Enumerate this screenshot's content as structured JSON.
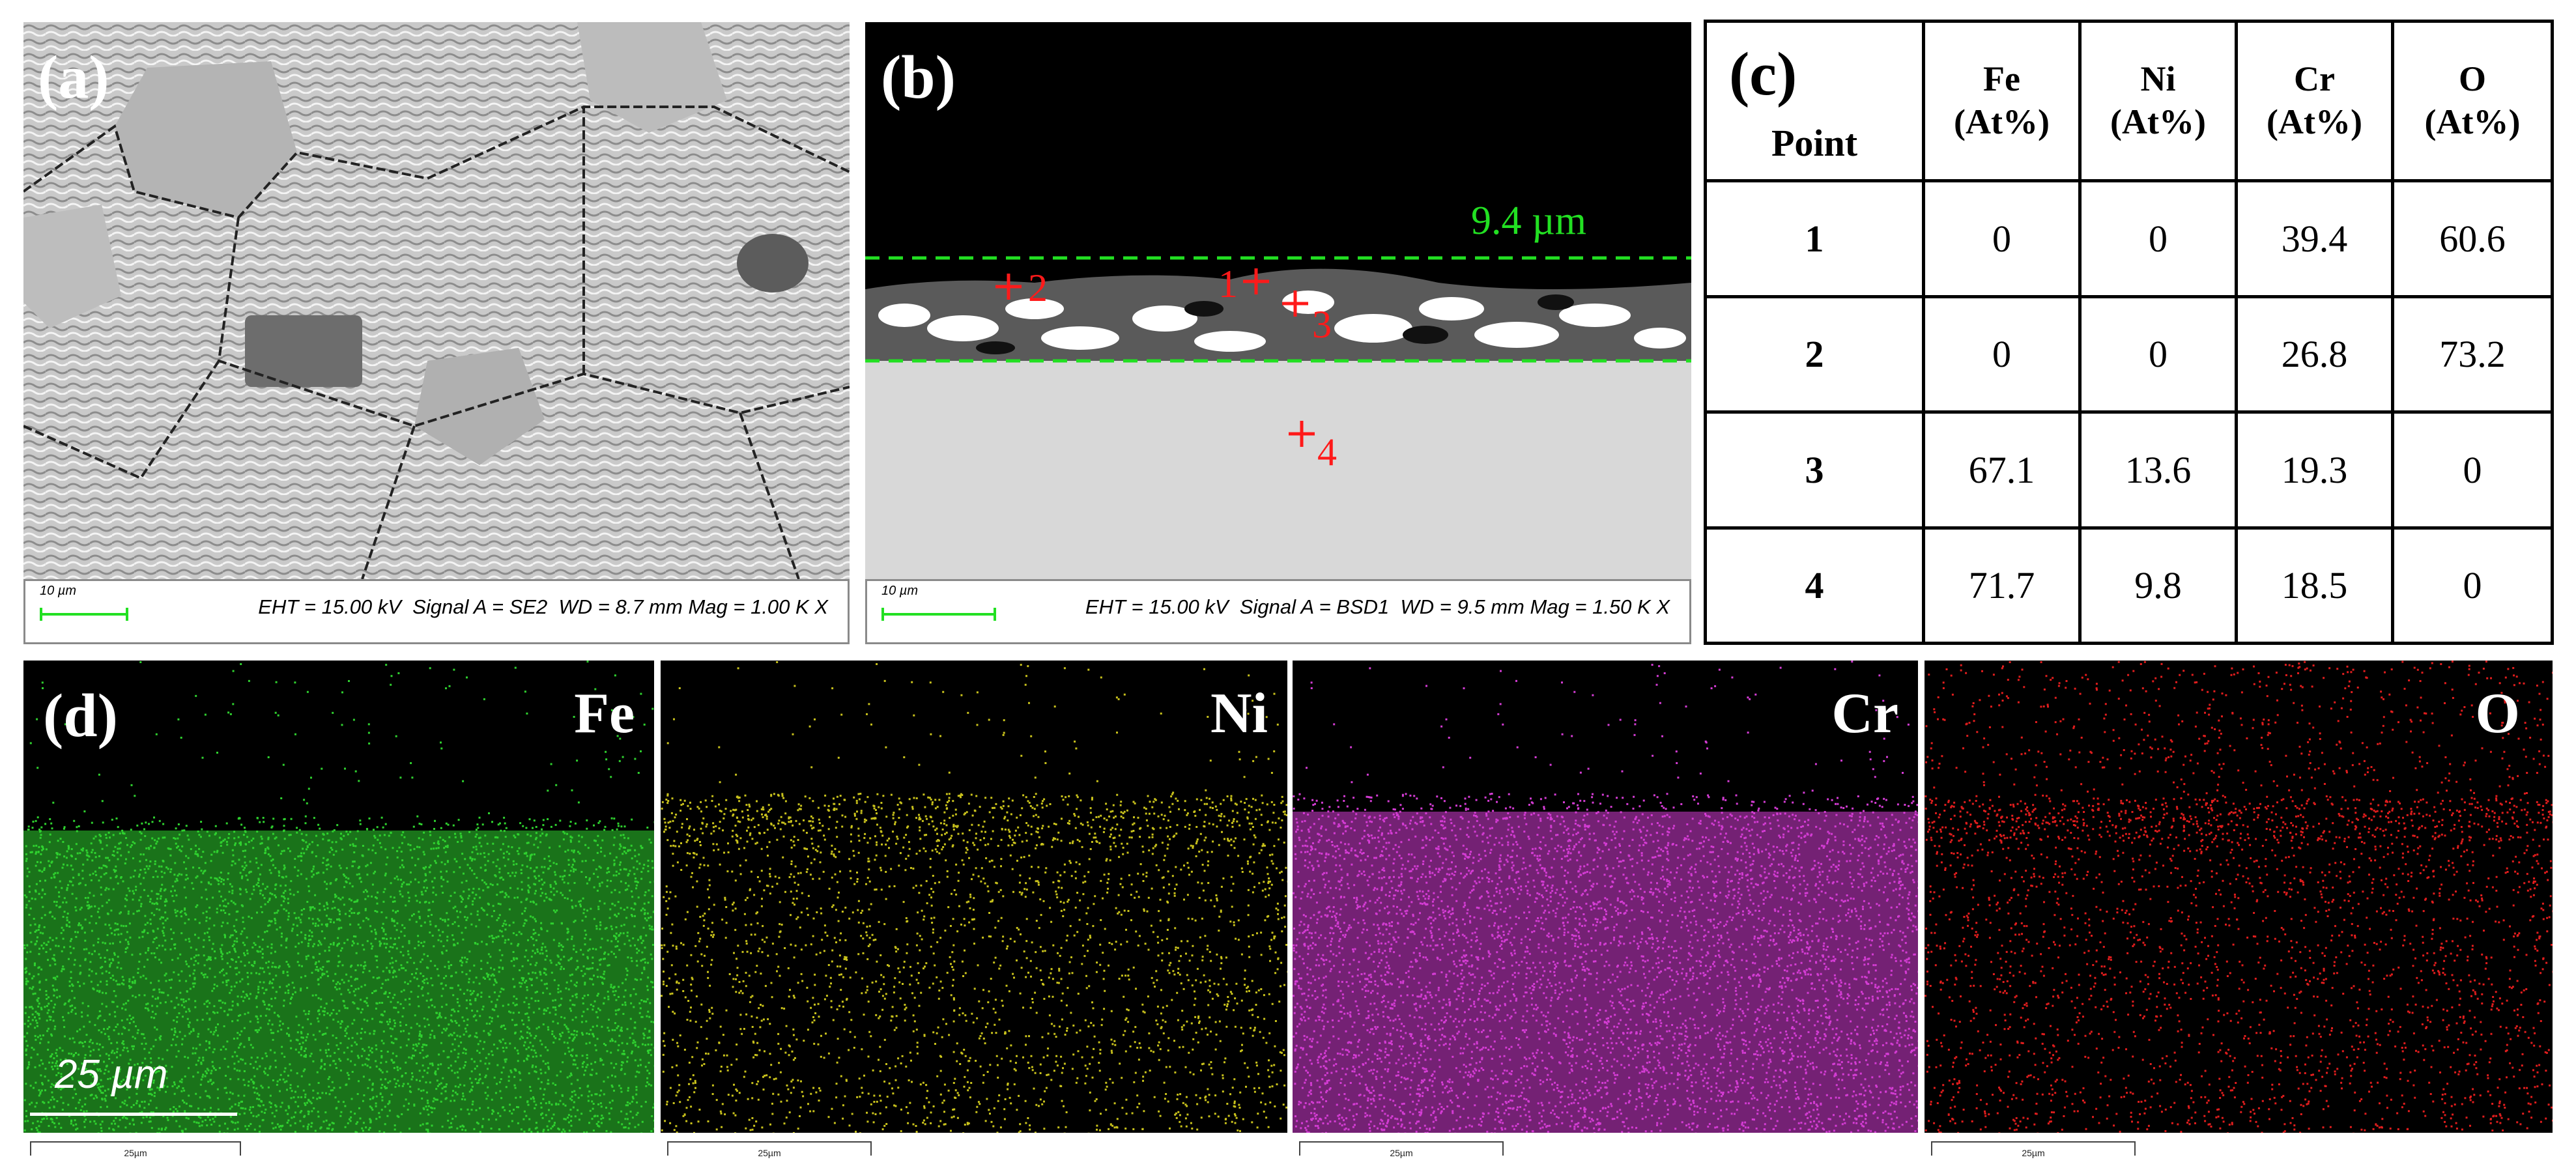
{
  "panel_a": {
    "label": "(a)",
    "scale_text": "10 µm",
    "params": "EHT = 15.00 kV  Signal A = SE2  WD = 8.7 mm Mag = 1.00 K X"
  },
  "panel_b": {
    "label": "(b)",
    "scale_text": "10 µm",
    "params": "EHT = 15.00 kV  Signal A = BSD1  WD = 9.5 mm Mag = 1.50 K X",
    "thickness_label": "9.4 µm",
    "points": [
      "1",
      "2",
      "3",
      "4"
    ]
  },
  "panel_c": {
    "label": "(c)",
    "header_point": "Point",
    "headers": [
      [
        "Fe",
        "(At%)"
      ],
      [
        "Ni",
        "(At%)"
      ],
      [
        "Cr",
        "(At%)"
      ],
      [
        "O",
        "(At%)"
      ]
    ],
    "rows": [
      {
        "point": "1",
        "values": [
          "0",
          "0",
          "39.4",
          "60.6"
        ]
      },
      {
        "point": "2",
        "values": [
          "0",
          "0",
          "26.8",
          "73.2"
        ]
      },
      {
        "point": "3",
        "values": [
          "67.1",
          "13.6",
          "19.3",
          "0"
        ]
      },
      {
        "point": "4",
        "values": [
          "71.7",
          "9.8",
          "18.5",
          "0"
        ]
      }
    ]
  },
  "panel_d": {
    "label": "(d)",
    "scale_text": "25 µm",
    "small_scale_text": "25µm",
    "maps": [
      {
        "element": "Fe",
        "color": "#2fd12f"
      },
      {
        "element": "Ni",
        "color": "#c9c21c"
      },
      {
        "element": "Cr",
        "color": "#d43cd4"
      },
      {
        "element": "O",
        "color": "#e01d1d"
      }
    ]
  },
  "colors": {
    "marker_red": "#ff1a1a",
    "dashed_green": "#22e022",
    "scalebar_green": "#22e022"
  }
}
